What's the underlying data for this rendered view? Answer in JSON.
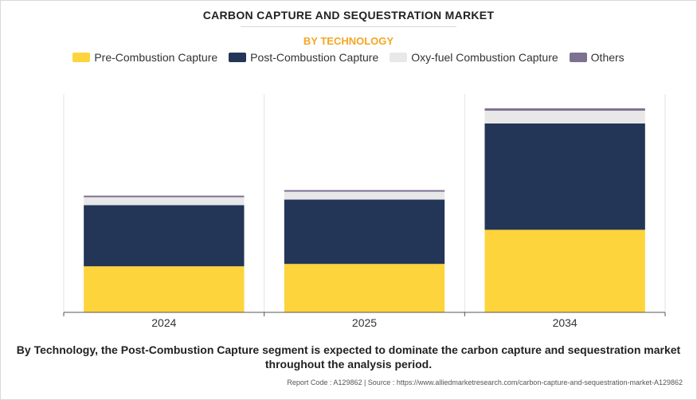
{
  "title": "CARBON CAPTURE AND SEQUESTRATION MARKET",
  "subtitle": "BY TECHNOLOGY",
  "caption": "By Technology, the Post-Combustion Capture segment is expected to dominate the carbon capture and sequestration market throughout the analysis period.",
  "footer": "Report Code : A129862  |  Source : https://www.alliedmarketresearch.com/carbon-capture-and-sequestration-market-A129862",
  "chart_data": {
    "type": "bar",
    "stacked": true,
    "categories": [
      "2024",
      "2025",
      "2034"
    ],
    "series": [
      {
        "name": "Pre-Combustion Capture",
        "color": "#fdd43b",
        "values": [
          58,
          61,
          104
        ]
      },
      {
        "name": "Post-Combustion Capture",
        "color": "#243657",
        "values": [
          77,
          81,
          134
        ]
      },
      {
        "name": "Oxy-fuel Combustion Capture",
        "color": "#e8e8e8",
        "values": [
          10,
          10,
          16
        ]
      },
      {
        "name": "Others",
        "color": "#7e7090",
        "values": [
          2,
          2,
          3
        ]
      }
    ],
    "ylim": [
      0,
      275
    ],
    "grid": "vertical",
    "legend": "top-center",
    "yaxis_visible": false
  }
}
